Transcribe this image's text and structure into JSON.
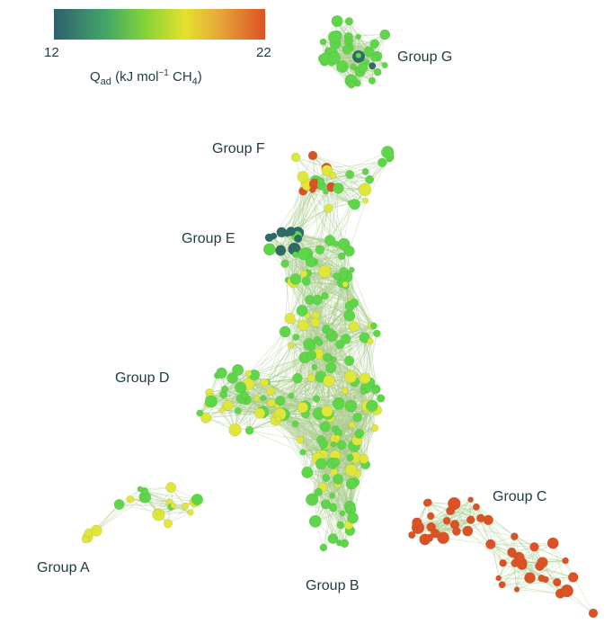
{
  "colorbar": {
    "min_label": "12",
    "max_label": "22",
    "title_main": "Q",
    "title_sub": "ad",
    "title_unit_pre": " (kJ mol",
    "title_sup": "−1",
    "title_unit_post": " CH",
    "title_sub2": "4",
    "title_close": ")",
    "stops": [
      "#2f5f6f",
      "#43a867",
      "#7fd03a",
      "#e3e22e",
      "#e7a83a",
      "#dd5225"
    ]
  },
  "groups": {
    "a": "Group A",
    "b": "Group B",
    "c": "Group C",
    "d": "Group D",
    "e": "Group E",
    "f": "Group F",
    "g": "Group G"
  },
  "colors": {
    "edge": "#a9cc8c",
    "node_green": "#5fd64a",
    "node_yellow": "#e0e63a",
    "node_orange": "#dd5225",
    "node_teal": "#2e6a66"
  }
}
